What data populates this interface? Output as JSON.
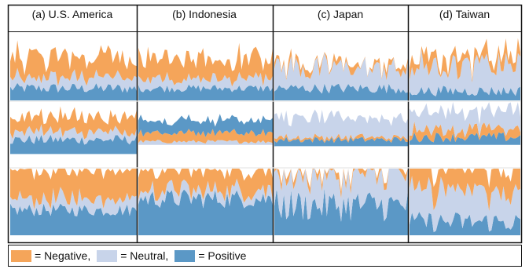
{
  "chart_data": {
    "type": "area",
    "panels": [
      {
        "title": "(a) U.S. America"
      },
      {
        "title": "(b) Indonesia"
      },
      {
        "title": "(c) Japan"
      },
      {
        "title": "(d) Taiwan"
      }
    ],
    "legend": [
      {
        "label": "= Negative,",
        "color": "#f5a55a"
      },
      {
        "label": "= Neutral,",
        "color": "#c8d4ea"
      },
      {
        "label": "= Positive",
        "color": "#5b98c6"
      }
    ],
    "colors": {
      "negative": "#f5a55a",
      "neutral": "#c8d4ea",
      "positive": "#5b98c6"
    },
    "legend_placement": "bottom",
    "grid": false
  }
}
